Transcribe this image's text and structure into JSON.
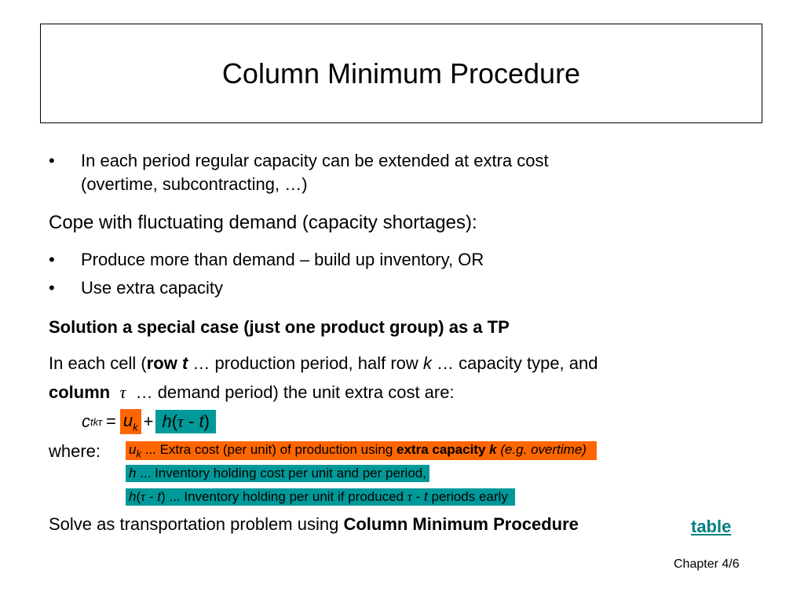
{
  "slide": {
    "title": "Column Minimum Procedure",
    "bullet_char": "•",
    "bullet1_line1": "In each period regular capacity can be extended at extra cost",
    "bullet1_line2": "(overtime, subcontracting, …)",
    "subheading": "Cope with fluctuating demand (capacity shortages):",
    "bullet2": "Produce more than demand – build up inventory, OR",
    "bullet3": "Use extra capacity",
    "solution_heading": "Solution a special case (just one product group) as a TP",
    "cell_line1": {
      "prefix": "In each cell (",
      "row_word": "row",
      "t": "t",
      "rest": " … production period, half row ",
      "k": "k",
      "rest2": " … capacity type, and"
    },
    "cell_line2": {
      "column_word": "column",
      "tau": "τ",
      "rest": " … demand period) the unit extra cost are:"
    },
    "formula": {
      "c": "c",
      "c_sub": "tkτ",
      "equals": "=",
      "u": "u",
      "u_sub": "k",
      "plus": "+",
      "h_expr_h": "h",
      "h_expr_open": "(",
      "h_expr_tau": "τ",
      "h_expr_minus": " - ",
      "h_expr_t": "t",
      "h_expr_close": ")"
    },
    "where_label": "where:",
    "note1": {
      "u": "u",
      "u_sub": "k",
      "text": " ... Extra cost (per unit) of production using ",
      "bold": "extra capacity ",
      "bold_k": "k",
      "tail": " (e.g. overtime)"
    },
    "note2": {
      "h": "h",
      "text": " ... Inventory holding cost per unit and per period,"
    },
    "note3": {
      "h": "h",
      "open": "(",
      "tau": "τ",
      "minus": " - ",
      "t": "t",
      "close": ")",
      "text": " ... Inventory holding per unit if  produced ",
      "tau2": "τ",
      "minus2": " - ",
      "t2": "t",
      "tail": " periods early"
    },
    "solve_prefix": "Solve as transportation problem using ",
    "solve_bold": "Column Minimum Procedure",
    "table_link": "table",
    "footer": "Chapter 4/6"
  },
  "colors": {
    "orange": "#ff6600",
    "teal": "#009999",
    "link": "#008080"
  }
}
